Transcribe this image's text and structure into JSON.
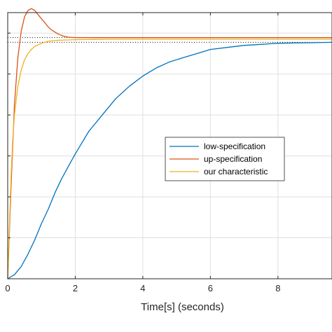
{
  "chart_data": {
    "type": "line",
    "title": "",
    "xlabel": "Time[s] (seconds)",
    "ylabel": "",
    "xlim": [
      0,
      9.6
    ],
    "ylim": [
      0,
      1.3
    ],
    "x_ticks": [
      0,
      2,
      4,
      6,
      8
    ],
    "x_tick_labels": [
      "0",
      "2",
      "4",
      "6",
      "8"
    ],
    "grid": true,
    "legend_position": "center-right",
    "series": [
      {
        "name": "low-specification",
        "color": "#0072BD",
        "x": [
          0,
          0.2,
          0.4,
          0.6,
          0.8,
          1.0,
          1.2,
          1.4,
          1.6,
          1.8,
          2.0,
          2.4,
          2.8,
          3.2,
          3.6,
          4.0,
          4.4,
          4.8,
          5.2,
          5.6,
          6.0,
          6.5,
          7.0,
          7.5,
          8.0,
          8.5,
          9.0,
          9.6
        ],
        "y": [
          0,
          0.02,
          0.06,
          0.12,
          0.19,
          0.27,
          0.34,
          0.42,
          0.49,
          0.55,
          0.61,
          0.72,
          0.8,
          0.88,
          0.94,
          0.99,
          1.03,
          1.06,
          1.08,
          1.1,
          1.12,
          1.13,
          1.14,
          1.145,
          1.15,
          1.152,
          1.153,
          1.155
        ]
      },
      {
        "name": "up-specification",
        "color": "#D95319",
        "x": [
          0,
          0.1,
          0.2,
          0.3,
          0.4,
          0.5,
          0.6,
          0.7,
          0.8,
          0.9,
          1.0,
          1.1,
          1.2,
          1.3,
          1.4,
          1.5,
          1.6,
          1.7,
          1.8,
          2.0,
          2.2,
          2.5,
          3.0,
          4.0,
          5.0,
          6.0,
          7.0,
          8.0,
          9.0,
          9.6
        ],
        "y": [
          0,
          0.45,
          0.85,
          1.08,
          1.21,
          1.28,
          1.31,
          1.32,
          1.31,
          1.29,
          1.27,
          1.25,
          1.23,
          1.215,
          1.205,
          1.195,
          1.188,
          1.183,
          1.18,
          1.178,
          1.178,
          1.178,
          1.178,
          1.178,
          1.178,
          1.178,
          1.178,
          1.178,
          1.178,
          1.178
        ]
      },
      {
        "name": "our characteristic",
        "color": "#EDB120",
        "x": [
          0,
          0.05,
          0.1,
          0.15,
          0.2,
          0.3,
          0.4,
          0.5,
          0.6,
          0.7,
          0.8,
          1.0,
          1.2,
          1.5,
          2.0,
          2.5,
          3.0,
          4.0,
          5.0,
          6.0,
          7.0,
          8.0,
          9.0,
          9.6
        ],
        "y": [
          0,
          0.25,
          0.5,
          0.68,
          0.8,
          0.94,
          1.02,
          1.07,
          1.1,
          1.12,
          1.135,
          1.15,
          1.16,
          1.165,
          1.168,
          1.169,
          1.17,
          1.17,
          1.17,
          1.17,
          1.17,
          1.17,
          1.17,
          1.17
        ]
      }
    ],
    "reference_lines": [
      {
        "style": "dotted",
        "color": "#000000",
        "y": 1.178
      },
      {
        "style": "dotted",
        "color": "#000000",
        "y": 1.155
      }
    ],
    "gridline_color": "#DFDFDF",
    "axis_color": "#262626"
  }
}
